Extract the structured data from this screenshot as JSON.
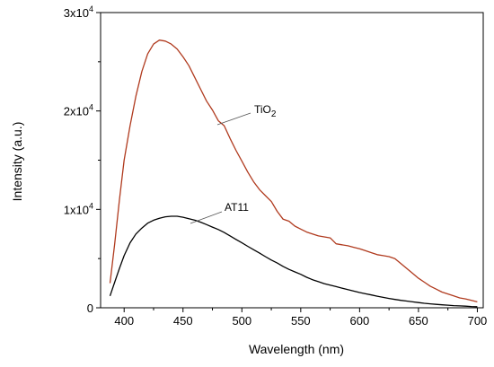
{
  "chart_data": {
    "type": "line",
    "xlabel": "Wavelength (nm)",
    "ylabel": "Intensity (a.u.)",
    "xlim": [
      380,
      705
    ],
    "ylim": [
      0,
      30000
    ],
    "x_ticks": [
      400,
      450,
      500,
      550,
      600,
      650,
      700
    ],
    "x_tick_labels": [
      "400",
      "450",
      "500",
      "550",
      "600",
      "650",
      "700"
    ],
    "y_ticks": [
      0,
      10000,
      20000,
      30000
    ],
    "y_tick_labels": [
      {
        "base": "0",
        "exp": ""
      },
      {
        "base": "1x10",
        "exp": "4"
      },
      {
        "base": "2x10",
        "exp": "4"
      },
      {
        "base": "3x10",
        "exp": "4"
      }
    ],
    "grid": false,
    "series": [
      {
        "name": "TiO2",
        "label_main": "TiO",
        "label_sub": "2",
        "color": "#b03a1e",
        "x": [
          388,
          392,
          396,
          400,
          405,
          410,
          415,
          420,
          425,
          430,
          435,
          440,
          445,
          450,
          455,
          460,
          465,
          470,
          475,
          480,
          485,
          490,
          495,
          500,
          505,
          510,
          515,
          520,
          525,
          530,
          535,
          540,
          545,
          550,
          555,
          560,
          565,
          570,
          575,
          580,
          585,
          590,
          595,
          600,
          605,
          610,
          615,
          620,
          625,
          630,
          635,
          640,
          645,
          650,
          655,
          660,
          665,
          670,
          675,
          680,
          685,
          690,
          695,
          700
        ],
        "y": [
          2500,
          6500,
          11000,
          15000,
          18500,
          21500,
          24000,
          25800,
          26800,
          27200,
          27100,
          26800,
          26300,
          25500,
          24600,
          23400,
          22200,
          21000,
          20100,
          19000,
          18500,
          17200,
          16000,
          14900,
          13800,
          12800,
          12000,
          11400,
          10800,
          9800,
          9000,
          8800,
          8300,
          8000,
          7700,
          7500,
          7300,
          7200,
          7100,
          6500,
          6400,
          6300,
          6150,
          6000,
          5800,
          5600,
          5400,
          5300,
          5200,
          5000,
          4500,
          4000,
          3500,
          3000,
          2600,
          2200,
          1900,
          1600,
          1400,
          1200,
          1000,
          900,
          750,
          600
        ]
      },
      {
        "name": "AT11",
        "label_main": "AT11",
        "label_sub": "",
        "color": "#000000",
        "x": [
          388,
          392,
          396,
          400,
          405,
          410,
          415,
          420,
          425,
          430,
          435,
          440,
          445,
          450,
          455,
          460,
          465,
          470,
          475,
          480,
          485,
          490,
          495,
          500,
          505,
          510,
          515,
          520,
          525,
          530,
          535,
          540,
          545,
          550,
          555,
          560,
          565,
          570,
          575,
          580,
          585,
          590,
          595,
          600,
          605,
          610,
          615,
          620,
          625,
          630,
          635,
          640,
          645,
          650,
          655,
          660,
          665,
          670,
          675,
          680,
          685,
          690,
          695,
          700
        ],
        "y": [
          1200,
          2600,
          4000,
          5300,
          6600,
          7500,
          8100,
          8600,
          8900,
          9100,
          9250,
          9300,
          9300,
          9200,
          9050,
          8900,
          8700,
          8450,
          8200,
          7950,
          7650,
          7300,
          6950,
          6600,
          6250,
          5900,
          5550,
          5200,
          4850,
          4550,
          4200,
          3900,
          3650,
          3400,
          3100,
          2850,
          2650,
          2450,
          2300,
          2150,
          2000,
          1850,
          1700,
          1550,
          1420,
          1300,
          1180,
          1060,
          950,
          850,
          760,
          680,
          600,
          530,
          460,
          400,
          350,
          300,
          260,
          220,
          190,
          160,
          130,
          110
        ]
      }
    ]
  }
}
